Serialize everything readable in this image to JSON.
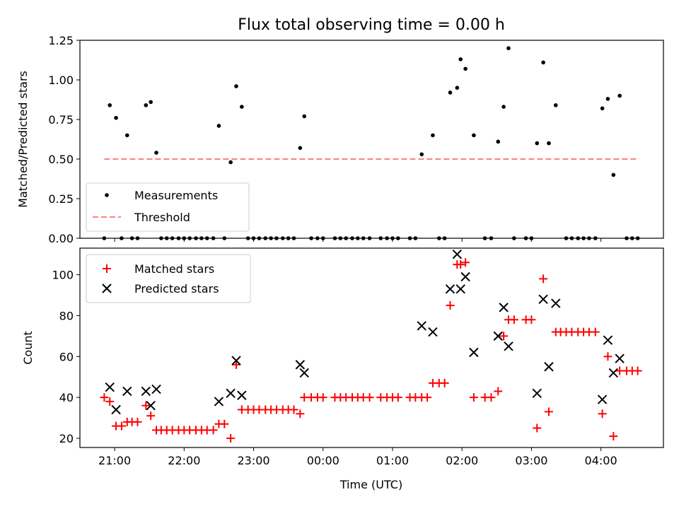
{
  "chart_data": [
    {
      "type": "scatter",
      "title": "Flux total observing time = 0.00 h",
      "xlabel": "",
      "ylabel": "Matched/Predicted stars",
      "ylim": [
        0,
        1.25
      ],
      "yticks": [
        "0.00",
        "0.25",
        "0.50",
        "0.75",
        "1.00",
        "1.25"
      ],
      "xlim": [
        20.5,
        28.9
      ],
      "threshold": {
        "name": "Threshold",
        "value": 0.5,
        "x_range": [
          20.85,
          28.55
        ],
        "color": "#ff8080"
      },
      "legend": {
        "placement": "lower-left",
        "entries": [
          "Measurements",
          "Threshold"
        ]
      },
      "series": [
        {
          "name": "Measurements",
          "color": "#000000",
          "x": [
            20.93,
            21.02,
            21.18,
            21.45,
            21.52,
            21.6,
            22.5,
            22.67,
            22.75,
            22.83,
            23.67,
            23.73,
            25.42,
            25.58,
            25.83,
            25.93,
            25.98,
            26.05,
            26.17,
            26.52,
            26.6,
            26.67,
            27.08,
            27.17,
            27.25,
            27.35,
            28.02,
            28.1,
            28.18,
            28.27
          ],
          "y": [
            0.84,
            0.76,
            0.65,
            0.84,
            0.86,
            0.54,
            0.71,
            0.48,
            0.96,
            0.83,
            0.57,
            0.77,
            0.53,
            0.65,
            0.92,
            0.95,
            1.13,
            1.07,
            0.65,
            0.61,
            0.83,
            1.2,
            0.6,
            1.11,
            0.6,
            0.84,
            0.82,
            0.88,
            0.4,
            0.9
          ]
        },
        {
          "name": "",
          "color": "#000000",
          "x": [
            20.85,
            21.1,
            21.25,
            21.33,
            21.67,
            21.75,
            21.83,
            21.92,
            22.0,
            22.08,
            22.17,
            22.25,
            22.33,
            22.42,
            22.58,
            22.92,
            23.0,
            23.08,
            23.17,
            23.25,
            23.33,
            23.42,
            23.5,
            23.58,
            23.83,
            23.92,
            24.0,
            24.17,
            24.25,
            24.33,
            24.42,
            24.5,
            24.58,
            24.67,
            24.83,
            24.92,
            25.0,
            25.08,
            25.25,
            25.33,
            25.67,
            25.75,
            26.33,
            26.42,
            26.75,
            26.92,
            27.0,
            27.5,
            27.58,
            27.67,
            27.75,
            27.83,
            27.92,
            28.37,
            28.45,
            28.53
          ],
          "y": [
            0,
            0,
            0,
            0,
            0,
            0,
            0,
            0,
            0,
            0,
            0,
            0,
            0,
            0,
            0,
            0,
            0,
            0,
            0,
            0,
            0,
            0,
            0,
            0,
            0,
            0,
            0,
            0,
            0,
            0,
            0,
            0,
            0,
            0,
            0,
            0,
            0,
            0,
            0,
            0,
            0,
            0,
            0,
            0,
            0,
            0,
            0,
            0,
            0,
            0,
            0,
            0,
            0,
            0,
            0,
            0
          ]
        }
      ]
    },
    {
      "type": "scatter",
      "title": "",
      "xlabel": "Time (UTC)",
      "ylabel": "Count",
      "ylim": [
        15.5,
        113
      ],
      "yticks": [
        "20",
        "40",
        "60",
        "80",
        "100"
      ],
      "xlim": [
        20.5,
        28.9
      ],
      "xticks": [
        "21:00",
        "22:00",
        "23:00",
        "00:00",
        "01:00",
        "02:00",
        "03:00",
        "04:00"
      ],
      "legend": {
        "placement": "upper-left",
        "entries": [
          "Matched stars",
          "Predicted stars"
        ]
      },
      "series": [
        {
          "name": "Matched stars",
          "color": "#ff0000",
          "marker": "plus",
          "x": [
            20.85,
            20.93,
            21.02,
            21.1,
            21.18,
            21.25,
            21.33,
            21.45,
            21.52,
            21.6,
            21.67,
            21.75,
            21.83,
            21.92,
            22.0,
            22.08,
            22.17,
            22.25,
            22.33,
            22.42,
            22.5,
            22.58,
            22.67,
            22.75,
            22.83,
            22.92,
            23.0,
            23.08,
            23.17,
            23.25,
            23.33,
            23.42,
            23.5,
            23.58,
            23.67,
            23.73,
            23.83,
            23.92,
            24.0,
            24.17,
            24.25,
            24.33,
            24.42,
            24.5,
            24.58,
            24.67,
            24.83,
            24.92,
            25.0,
            25.08,
            25.25,
            25.33,
            25.42,
            25.5,
            25.58,
            25.67,
            25.75,
            25.83,
            25.93,
            25.98,
            26.05,
            26.17,
            26.33,
            26.42,
            26.52,
            26.6,
            26.67,
            26.75,
            26.92,
            27.0,
            27.08,
            27.17,
            27.25,
            27.35,
            27.42,
            27.5,
            27.58,
            27.67,
            27.75,
            27.83,
            27.92,
            28.02,
            28.1,
            28.18,
            28.27,
            28.37,
            28.45,
            28.53
          ],
          "y": [
            40,
            38,
            26,
            26,
            28,
            28,
            28,
            36,
            31,
            24,
            24,
            24,
            24,
            24,
            24,
            24,
            24,
            24,
            24,
            24,
            27,
            27,
            20,
            56,
            34,
            34,
            34,
            34,
            34,
            34,
            34,
            34,
            34,
            34,
            32,
            40,
            40,
            40,
            40,
            40,
            40,
            40,
            40,
            40,
            40,
            40,
            40,
            40,
            40,
            40,
            40,
            40,
            40,
            40,
            47,
            47,
            47,
            85,
            105,
            105,
            106,
            40,
            40,
            40,
            43,
            70,
            78,
            78,
            78,
            78,
            25,
            98,
            33,
            72,
            72,
            72,
            72,
            72,
            72,
            72,
            72,
            32,
            60,
            21,
            53,
            53,
            53,
            53
          ]
        },
        {
          "name": "Predicted stars",
          "color": "#000000",
          "marker": "x",
          "x": [
            20.93,
            21.02,
            21.18,
            21.45,
            21.52,
            21.6,
            22.5,
            22.67,
            22.75,
            22.83,
            23.67,
            23.73,
            25.42,
            25.58,
            25.83,
            25.93,
            25.98,
            26.05,
            26.17,
            26.52,
            26.6,
            26.67,
            27.08,
            27.17,
            27.25,
            27.35,
            28.02,
            28.1,
            28.18,
            28.27
          ],
          "y": [
            45,
            34,
            43,
            43,
            36,
            44,
            38,
            42,
            58,
            41,
            56,
            52,
            75,
            72,
            93,
            110,
            93,
            99,
            62,
            70,
            84,
            65,
            42,
            88,
            55,
            86,
            39,
            68,
            52,
            59
          ]
        }
      ]
    }
  ]
}
